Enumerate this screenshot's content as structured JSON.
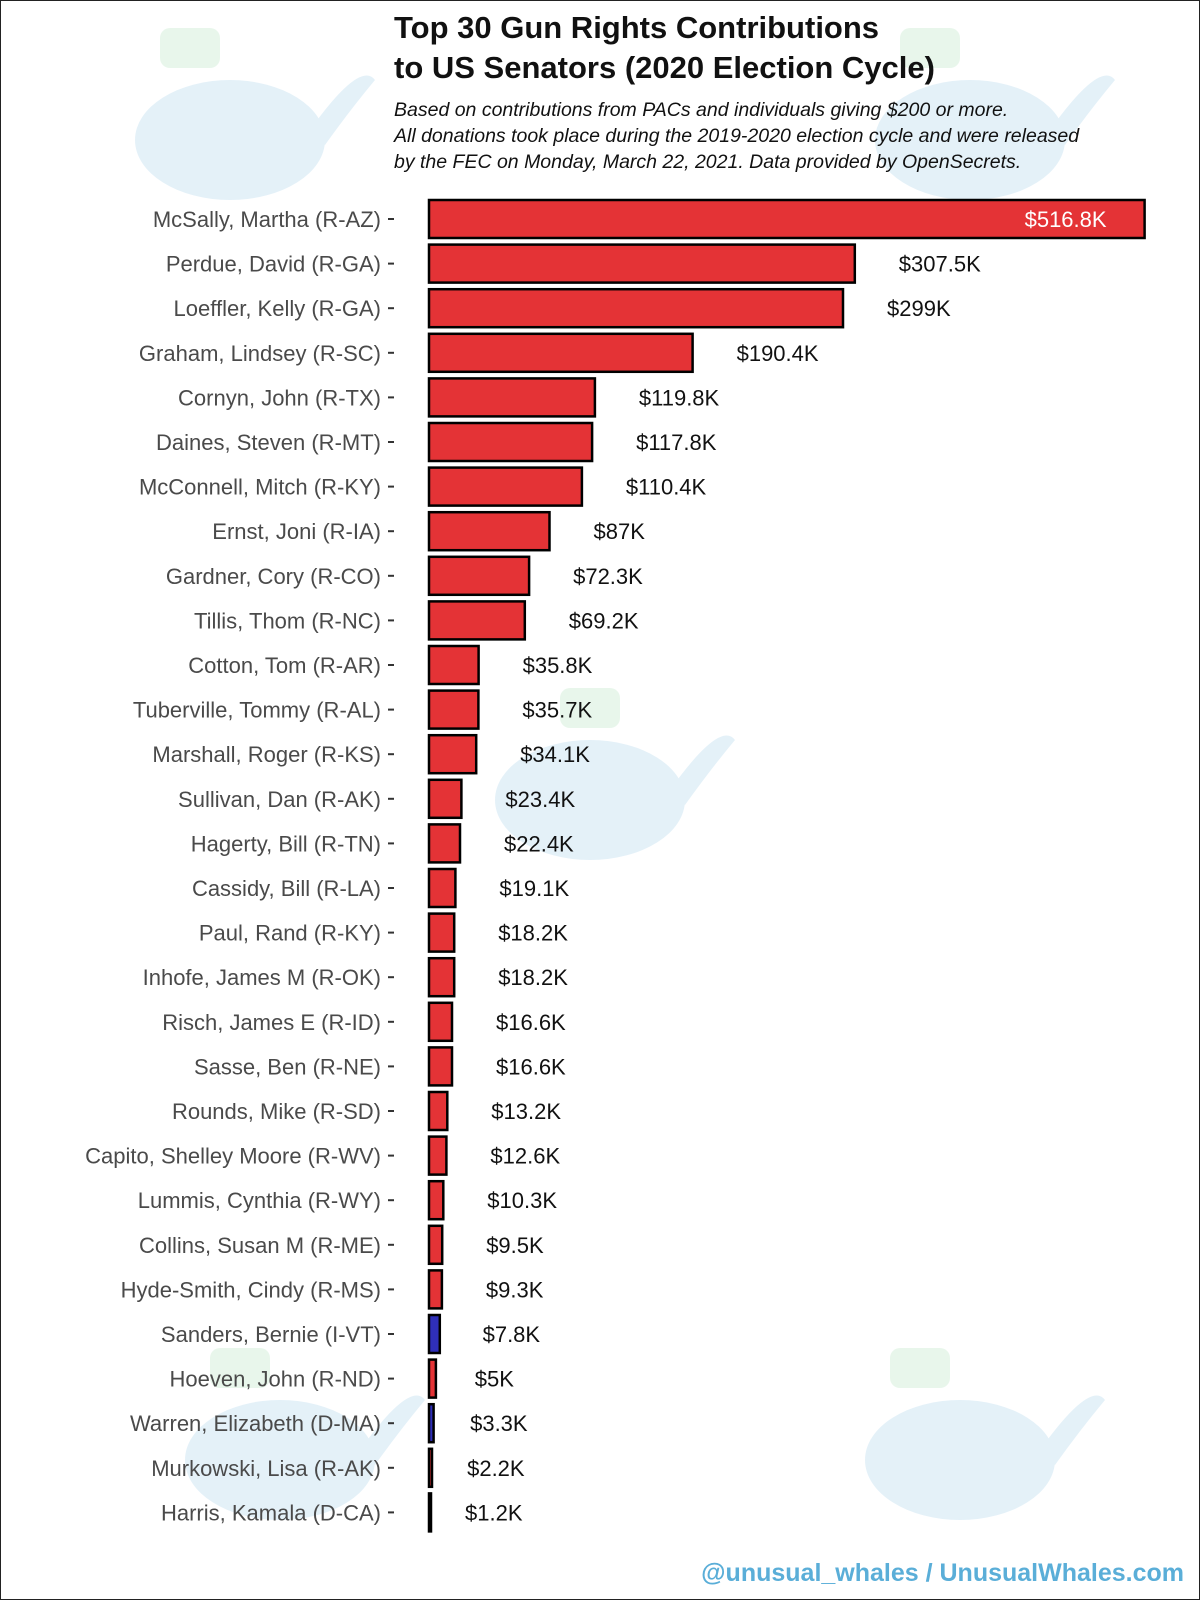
{
  "title": {
    "line1": "Top 30 Gun Rights Contributions",
    "line2": "to US Senators (2020 Election Cycle)"
  },
  "subtitle": {
    "line1": "Based on contributions from PACs and individuals giving $200 or more.",
    "line2": "All donations took place during the 2019-2020 election cycle and were released",
    "line3": "by the FEC on Monday, March 22, 2021. Data provided by OpenSecrets."
  },
  "credit": "@unusual_whales / UnusualWhales.com",
  "colors": {
    "republican": "#e43336",
    "democrat": "#2f2fb8",
    "independent": "#2f2fb8",
    "credit": "#5aaed8"
  },
  "chart_data": {
    "type": "bar",
    "orientation": "horizontal",
    "title": "Top 30 Gun Rights Contributions to US Senators (2020 Election Cycle)",
    "xlabel": "",
    "ylabel": "",
    "xlim": [
      0,
      520
    ],
    "unit": "thousands USD",
    "categories": [
      "McSally, Martha (R-AZ)",
      "Perdue, David (R-GA)",
      "Loeffler, Kelly (R-GA)",
      "Graham, Lindsey (R-SC)",
      "Cornyn, John (R-TX)",
      "Daines, Steven (R-MT)",
      "McConnell, Mitch (R-KY)",
      "Ernst, Joni (R-IA)",
      "Gardner, Cory (R-CO)",
      "Tillis, Thom (R-NC)",
      "Cotton, Tom (R-AR)",
      "Tuberville, Tommy (R-AL)",
      "Marshall, Roger (R-KS)",
      "Sullivan, Dan (R-AK)",
      "Hagerty, Bill (R-TN)",
      "Cassidy, Bill (R-LA)",
      "Paul, Rand (R-KY)",
      "Inhofe, James M (R-OK)",
      "Risch, James E (R-ID)",
      "Sasse, Ben (R-NE)",
      "Rounds, Mike (R-SD)",
      "Capito, Shelley Moore (R-WV)",
      "Lummis, Cynthia (R-WY)",
      "Collins, Susan M (R-ME)",
      "Hyde-Smith, Cindy (R-MS)",
      "Sanders, Bernie (I-VT)",
      "Hoeven, John (R-ND)",
      "Warren, Elizabeth (D-MA)",
      "Murkowski, Lisa (R-AK)",
      "Harris, Kamala (D-CA)"
    ],
    "values": [
      516.8,
      307.5,
      299,
      190.4,
      119.8,
      117.8,
      110.4,
      87,
      72.3,
      69.2,
      35.8,
      35.7,
      34.1,
      23.4,
      22.4,
      19.1,
      18.2,
      18.2,
      16.6,
      16.6,
      13.2,
      12.6,
      10.3,
      9.5,
      9.3,
      7.8,
      5,
      3.3,
      2.2,
      1.2
    ],
    "value_labels": [
      "$516.8K",
      "$307.5K",
      "$299K",
      "$190.4K",
      "$119.8K",
      "$117.8K",
      "$110.4K",
      "$87K",
      "$72.3K",
      "$69.2K",
      "$35.8K",
      "$35.7K",
      "$34.1K",
      "$23.4K",
      "$22.4K",
      "$19.1K",
      "$18.2K",
      "$18.2K",
      "$16.6K",
      "$16.6K",
      "$13.2K",
      "$12.6K",
      "$10.3K",
      "$9.5K",
      "$9.3K",
      "$7.8K",
      "$5K",
      "$3.3K",
      "$2.2K",
      "$1.2K"
    ],
    "party": [
      "R",
      "R",
      "R",
      "R",
      "R",
      "R",
      "R",
      "R",
      "R",
      "R",
      "R",
      "R",
      "R",
      "R",
      "R",
      "R",
      "R",
      "R",
      "R",
      "R",
      "R",
      "R",
      "R",
      "R",
      "R",
      "I",
      "R",
      "D",
      "R",
      "D"
    ],
    "grid": false,
    "legend": "none"
  }
}
